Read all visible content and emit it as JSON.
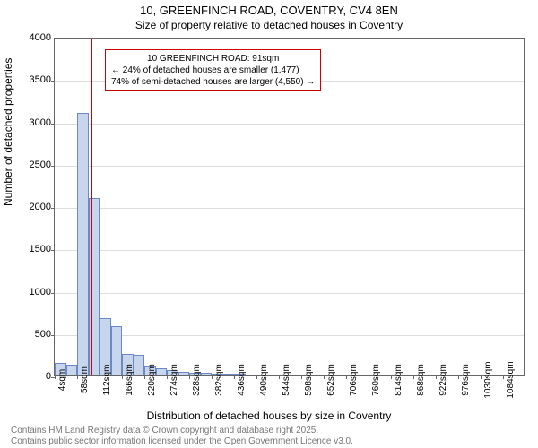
{
  "title_main": "10, GREENFINCH ROAD, COVENTRY, CV4 8EN",
  "title_sub": "Size of property relative to detached houses in Coventry",
  "y_axis_label": "Number of detached properties",
  "x_axis_label": "Distribution of detached houses by size in Coventry",
  "footer_line1": "Contains HM Land Registry data © Crown copyright and database right 2025.",
  "footer_line2": "Contains public sector information licensed under the Open Government Licence v3.0.",
  "chart": {
    "type": "histogram",
    "ylim": [
      0,
      4000
    ],
    "yticks": [
      0,
      500,
      1000,
      1500,
      2000,
      2500,
      3000,
      3500,
      4000
    ],
    "xlim": [
      4,
      1138
    ],
    "xticks": [
      4,
      58,
      112,
      166,
      220,
      274,
      328,
      382,
      436,
      490,
      544,
      598,
      652,
      706,
      760,
      814,
      868,
      922,
      976,
      1030,
      1084
    ],
    "xtick_suffix": "sqm",
    "bar_color": "#c7d5ed",
    "bar_border": "#6b89c7",
    "grid_color": "#dddddd",
    "axis_color": "#666666",
    "background_color": "#ffffff",
    "bin_width": 27,
    "bin_left_edges": [
      4,
      31,
      58,
      85,
      112,
      139,
      166,
      193,
      220,
      247,
      274,
      301,
      328,
      355,
      382,
      409,
      436,
      463,
      490,
      517,
      544
    ],
    "bin_values": [
      150,
      130,
      3100,
      2100,
      680,
      580,
      250,
      240,
      110,
      80,
      60,
      40,
      35,
      30,
      25,
      25,
      20,
      15,
      10,
      5,
      5
    ],
    "marker_value": 91,
    "marker_color": "#cc0000",
    "annotation": {
      "line1": "10 GREENFINCH ROAD: 91sqm",
      "line2": "← 24% of detached houses are smaller (1,477)",
      "line3": "74% of semi-detached houses are larger (4,550) →",
      "border_color": "#cc0000",
      "background_color": "#ffffff",
      "fontsize": 10
    }
  }
}
